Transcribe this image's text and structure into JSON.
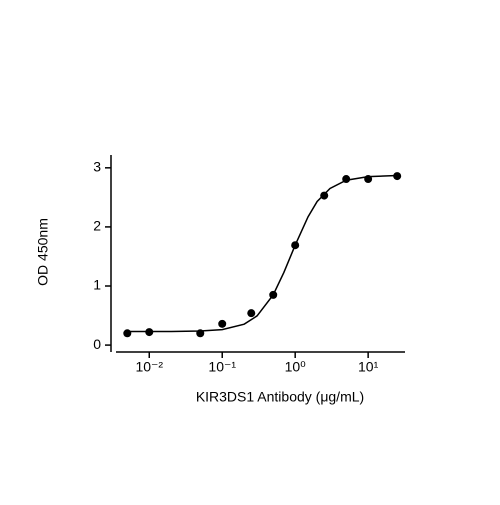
{
  "chart_data": {
    "type": "scatter",
    "xscale": "log",
    "xlabel": "KIR3DS1 Antibody (μg/mL)",
    "ylabel": "OD 450nm",
    "xlim": [
      0.0035,
      32
    ],
    "ylim": [
      -0.1,
      3.2
    ],
    "xticks": [
      {
        "value": 0.01,
        "label": "10⁻²"
      },
      {
        "value": 0.1,
        "label": "10⁻¹"
      },
      {
        "value": 1,
        "label": "10⁰"
      },
      {
        "value": 10,
        "label": "10¹"
      }
    ],
    "yticks": [
      0,
      1,
      2,
      3
    ],
    "series": [
      {
        "mode": "markers",
        "color": "#000000",
        "x": [
          0.005,
          0.01,
          0.05,
          0.1,
          0.25,
          0.5,
          1,
          2.5,
          5,
          10,
          25
        ],
        "values": [
          0.2,
          0.22,
          0.2,
          0.36,
          0.54,
          0.85,
          1.69,
          2.53,
          2.81,
          2.81,
          2.86
        ]
      },
      {
        "mode": "line",
        "color": "#000000",
        "x": [
          0.005,
          0.01,
          0.02,
          0.05,
          0.1,
          0.2,
          0.3,
          0.5,
          0.7,
          1,
          1.5,
          2,
          3,
          5,
          10,
          25
        ],
        "values": [
          0.23,
          0.23,
          0.231,
          0.238,
          0.262,
          0.354,
          0.494,
          0.85,
          1.23,
          1.69,
          2.17,
          2.43,
          2.65,
          2.79,
          2.85,
          2.87
        ]
      }
    ]
  }
}
